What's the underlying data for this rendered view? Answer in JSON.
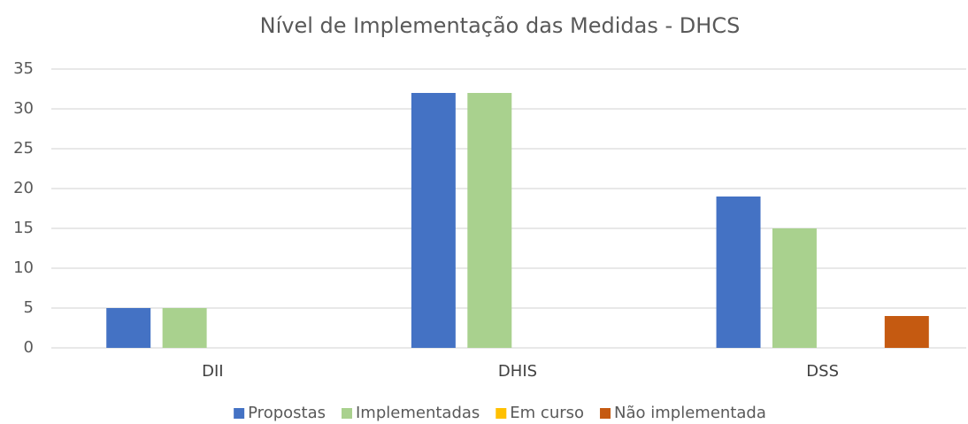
{
  "chart_data": {
    "type": "bar",
    "title": "Nível de Implementação das Medidas - DHCS",
    "categories": [
      "DII",
      "DHIS",
      "DSS"
    ],
    "series": [
      {
        "name": "Propostas",
        "color": "#4472c4",
        "values": [
          5,
          32,
          19
        ]
      },
      {
        "name": "Implementadas",
        "color": "#a9d18e",
        "values": [
          5,
          32,
          15
        ]
      },
      {
        "name": "Em curso",
        "color": "#ffc000",
        "values": [
          0,
          0,
          0
        ]
      },
      {
        "name": "Não implementada",
        "color": "#c55a11",
        "values": [
          0,
          0,
          4
        ]
      }
    ],
    "ylim": [
      0,
      35
    ],
    "yticks": [
      0,
      5,
      10,
      15,
      20,
      25,
      30,
      35
    ],
    "grid": true,
    "legend": "bottom"
  }
}
